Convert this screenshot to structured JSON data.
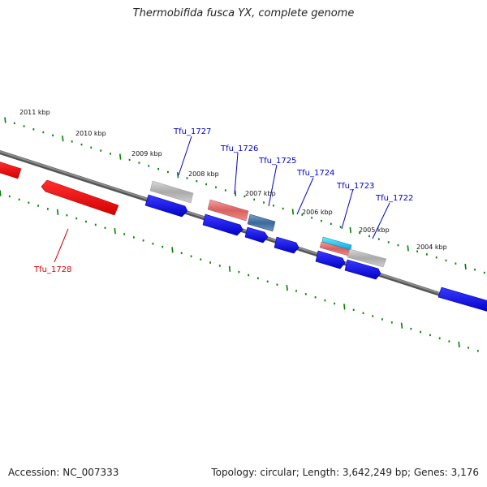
{
  "title": "Thermobifida fusca YX, complete genome",
  "footer": {
    "accession": "Accession: NC_007333",
    "topology": "Topology: circular; Length: 3,642,249 bp; Genes: 3,176"
  },
  "colors": {
    "backbone": "#808080",
    "forward_strand": "#0000ee",
    "reverse_strand": "#ee0000",
    "tick_marks": "#008000",
    "label_blue": "#0000cc",
    "label_red": "#dd0000"
  },
  "kbp_markers": [
    "2011 kbp",
    "2010 kbp",
    "2009 kbp",
    "2008 kbp",
    "2007 kbp",
    "2006 kbp",
    "2005 kbp",
    "2004 kbp"
  ],
  "gene_labels": [
    "Tfu_1727",
    "Tfu_1726",
    "Tfu_1725",
    "Tfu_1724",
    "Tfu_1723",
    "Tfu_1722",
    "Tfu_1728"
  ]
}
